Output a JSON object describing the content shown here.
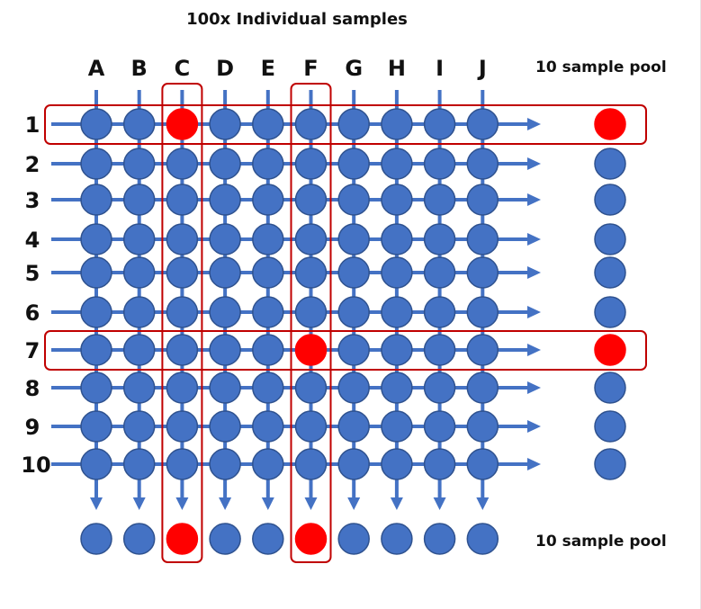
{
  "title": "100x Individual samples",
  "columns": [
    "A",
    "B",
    "C",
    "D",
    "E",
    "F",
    "G",
    "H",
    "I",
    "J"
  ],
  "rows": [
    "1",
    "2",
    "3",
    "4",
    "5",
    "6",
    "7",
    "8",
    "9",
    "10"
  ],
  "pool_label_right": "10 sample pool",
  "pool_label_bottom": "10 sample pool",
  "positive_rows": [
    "1",
    "7"
  ],
  "positive_columns": [
    "C",
    "F"
  ],
  "positive_samples": [
    "C1",
    "F7"
  ],
  "colors": {
    "sample": "#4472C4",
    "positive": "#FF0000",
    "line": "#4472C4",
    "highlight": "#C00000",
    "outline": "#2F528F"
  }
}
